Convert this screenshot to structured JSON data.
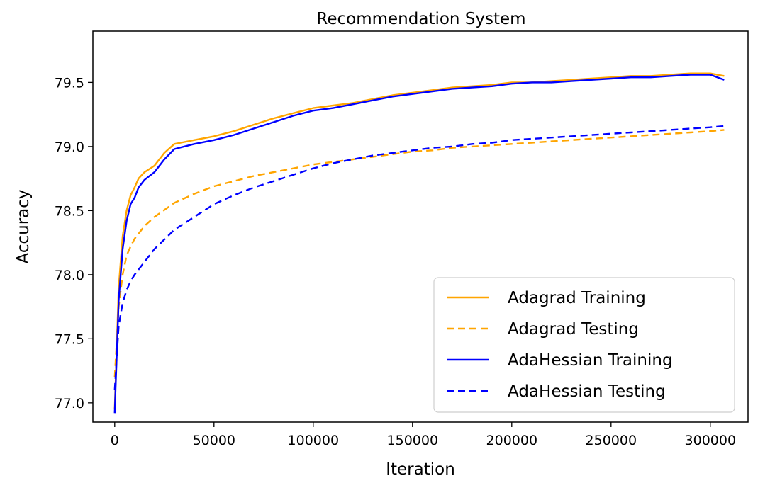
{
  "chart_data": {
    "type": "line",
    "title": "Recommendation System",
    "xlabel": "Iteration",
    "ylabel": "Accuracy",
    "xlim": [
      -11000,
      319000
    ],
    "ylim": [
      76.85,
      79.9
    ],
    "x_ticks": [
      0,
      50000,
      100000,
      150000,
      200000,
      250000,
      300000
    ],
    "y_ticks": [
      77.0,
      77.5,
      78.0,
      78.5,
      79.0,
      79.5
    ],
    "legend_position": "lower-right",
    "series": [
      {
        "name": "Adagrad Training",
        "color": "#FFA500",
        "style": "solid",
        "x": [
          0,
          2000,
          4000,
          6000,
          8000,
          10000,
          12000,
          15000,
          20000,
          25000,
          30000,
          40000,
          50000,
          60000,
          70000,
          80000,
          90000,
          100000,
          110000,
          120000,
          130000,
          140000,
          150000,
          160000,
          170000,
          180000,
          190000,
          200000,
          210000,
          220000,
          230000,
          240000,
          250000,
          260000,
          270000,
          280000,
          290000,
          300000,
          307000
        ],
        "y": [
          76.95,
          77.9,
          78.3,
          78.5,
          78.62,
          78.68,
          78.75,
          78.8,
          78.85,
          78.95,
          79.02,
          79.05,
          79.08,
          79.12,
          79.17,
          79.22,
          79.26,
          79.3,
          79.32,
          79.34,
          79.37,
          79.4,
          79.42,
          79.44,
          79.46,
          79.47,
          79.48,
          79.5,
          79.5,
          79.51,
          79.52,
          79.53,
          79.54,
          79.55,
          79.55,
          79.56,
          79.57,
          79.57,
          79.55
        ]
      },
      {
        "name": "Adagrad Testing",
        "color": "#FFA500",
        "style": "dashed",
        "x": [
          0,
          2000,
          4000,
          6000,
          8000,
          10000,
          15000,
          20000,
          30000,
          40000,
          50000,
          60000,
          70000,
          80000,
          90000,
          100000,
          110000,
          120000,
          130000,
          140000,
          150000,
          160000,
          170000,
          180000,
          190000,
          200000,
          210000,
          220000,
          230000,
          240000,
          250000,
          260000,
          270000,
          280000,
          290000,
          300000,
          307000
        ],
        "y": [
          77.2,
          77.75,
          78.0,
          78.15,
          78.22,
          78.28,
          78.38,
          78.45,
          78.56,
          78.63,
          78.69,
          78.73,
          78.77,
          78.8,
          78.83,
          78.86,
          78.88,
          78.9,
          78.92,
          78.94,
          78.96,
          78.97,
          78.99,
          79.0,
          79.01,
          79.02,
          79.03,
          79.04,
          79.05,
          79.06,
          79.07,
          79.08,
          79.09,
          79.1,
          79.11,
          79.12,
          79.13
        ]
      },
      {
        "name": "AdaHessian Training",
        "color": "#0000FF",
        "style": "solid",
        "x": [
          0,
          2000,
          4000,
          6000,
          8000,
          10000,
          12000,
          15000,
          20000,
          25000,
          30000,
          40000,
          50000,
          60000,
          70000,
          80000,
          90000,
          100000,
          110000,
          120000,
          130000,
          140000,
          150000,
          160000,
          170000,
          180000,
          190000,
          200000,
          210000,
          220000,
          230000,
          240000,
          250000,
          260000,
          270000,
          280000,
          290000,
          300000,
          307000
        ],
        "y": [
          76.92,
          77.8,
          78.2,
          78.42,
          78.55,
          78.6,
          78.68,
          78.74,
          78.8,
          78.9,
          78.98,
          79.02,
          79.05,
          79.09,
          79.14,
          79.19,
          79.24,
          79.28,
          79.3,
          79.33,
          79.36,
          79.39,
          79.41,
          79.43,
          79.45,
          79.46,
          79.47,
          79.49,
          79.5,
          79.5,
          79.51,
          79.52,
          79.53,
          79.54,
          79.54,
          79.55,
          79.56,
          79.56,
          79.52
        ]
      },
      {
        "name": "AdaHessian Testing",
        "color": "#0000FF",
        "style": "dashed",
        "x": [
          0,
          2000,
          4000,
          6000,
          8000,
          10000,
          15000,
          20000,
          30000,
          40000,
          50000,
          60000,
          70000,
          80000,
          90000,
          100000,
          110000,
          120000,
          130000,
          140000,
          150000,
          160000,
          170000,
          180000,
          190000,
          200000,
          210000,
          220000,
          230000,
          240000,
          250000,
          260000,
          270000,
          280000,
          290000,
          300000,
          307000
        ],
        "y": [
          77.1,
          77.6,
          77.78,
          77.88,
          77.95,
          78.0,
          78.1,
          78.2,
          78.35,
          78.45,
          78.55,
          78.62,
          78.68,
          78.73,
          78.78,
          78.83,
          78.87,
          78.9,
          78.93,
          78.95,
          78.97,
          78.99,
          79.0,
          79.02,
          79.03,
          79.05,
          79.06,
          79.07,
          79.08,
          79.09,
          79.1,
          79.11,
          79.12,
          79.13,
          79.14,
          79.15,
          79.16
        ]
      }
    ]
  }
}
